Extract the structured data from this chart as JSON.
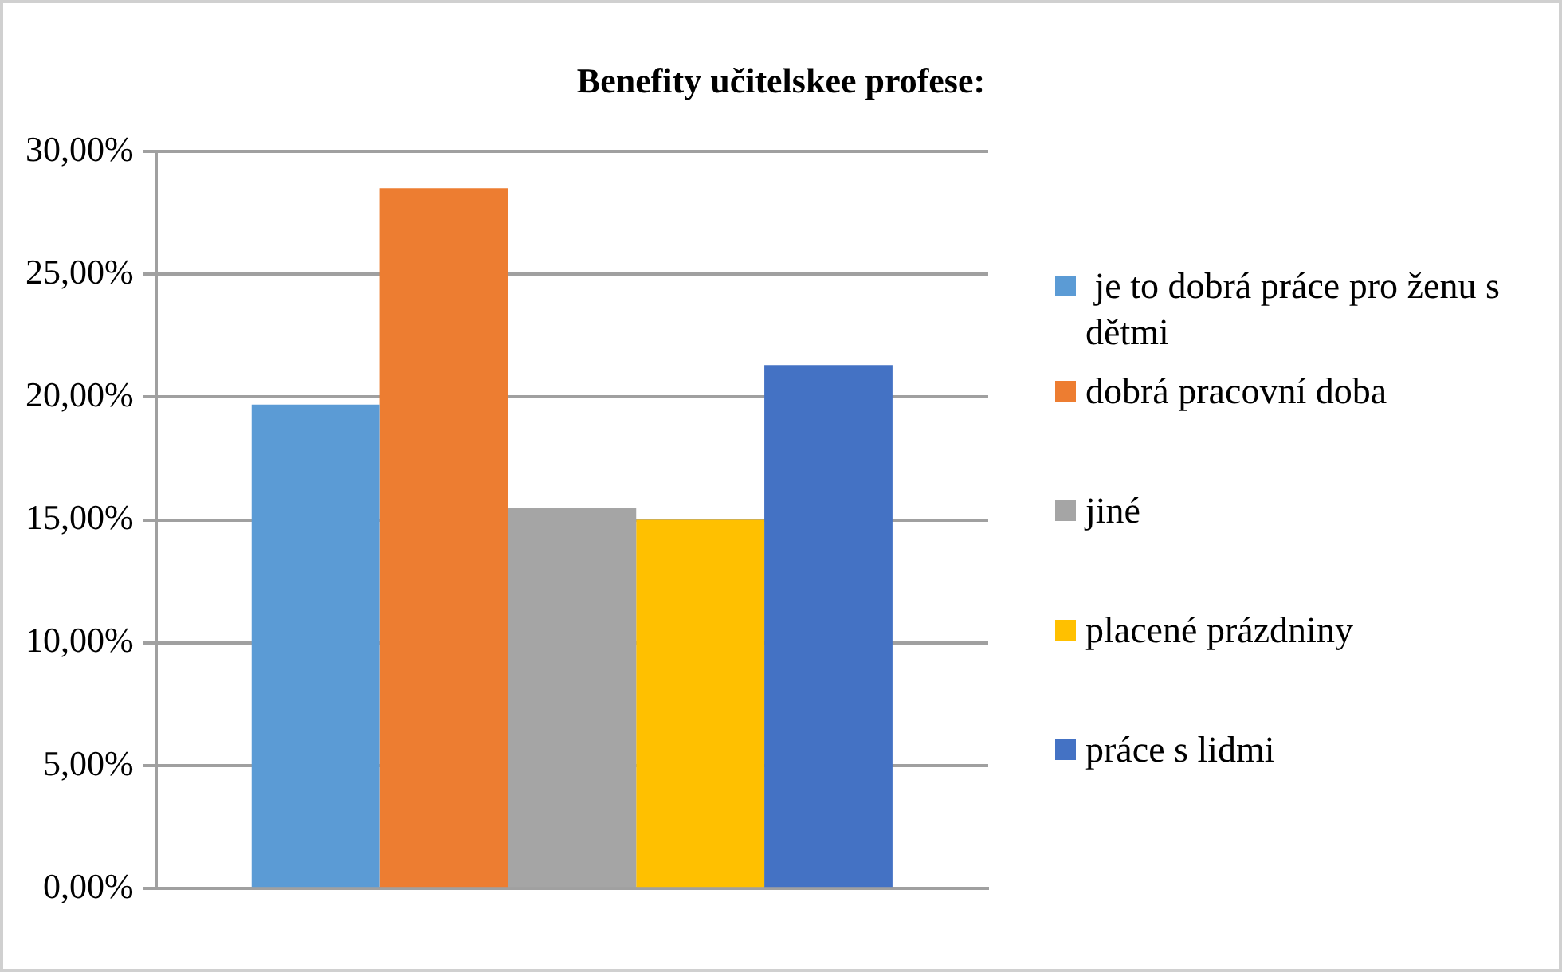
{
  "chart_data": {
    "type": "bar",
    "title": "Benefity učitelskee profese:",
    "categories": [
      null
    ],
    "series": [
      {
        "name": " je to dobrá práce pro ženu s dětmi",
        "color": "#5b9bd5",
        "values": [
          19.7
        ]
      },
      {
        "name": "dobrá pracovní doba",
        "color": "#ed7d31",
        "values": [
          28.5
        ]
      },
      {
        "name": "jiné",
        "color": "#a5a5a5",
        "values": [
          15.5
        ]
      },
      {
        "name": "placené prázdniny",
        "color": "#ffc000",
        "values": [
          15.0
        ]
      },
      {
        "name": "práce s lidmi",
        "color": "#4472c4",
        "values": [
          21.3
        ]
      }
    ],
    "ylim": [
      0,
      30
    ],
    "yticks": [
      {
        "value": 0,
        "label": "0,00%"
      },
      {
        "value": 5,
        "label": "5,00%"
      },
      {
        "value": 10,
        "label": "10,00%"
      },
      {
        "value": 15,
        "label": "15,00%"
      },
      {
        "value": 20,
        "label": "20,00%"
      },
      {
        "value": 25,
        "label": "25,00%"
      },
      {
        "value": 30,
        "label": "30,00%"
      }
    ],
    "grid": "y",
    "legend": "right"
  }
}
